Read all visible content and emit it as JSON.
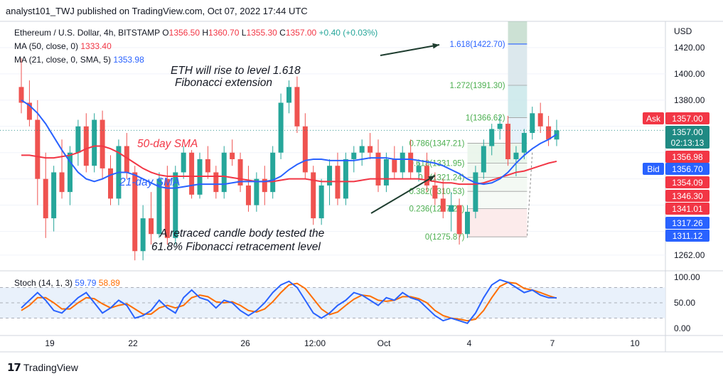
{
  "header": {
    "publisher_line": "analyst101_TWJ published on TradingView.com, Oct 07, 2022 17:44 UTC"
  },
  "footer": {
    "brand": "TradingView"
  },
  "legend": {
    "symbol": "Ethereum / U.S. Dollar, 4h, BITSTAMP",
    "o_label": "O",
    "o": "1356.50",
    "h_label": "H",
    "h": "1360.70",
    "l_label": "L",
    "l": "1355.30",
    "c_label": "C",
    "c": "1357.00",
    "change": "+0.40 (+0.03%)",
    "ma1_label": "MA (50, close, 0)",
    "ma1_value": "1333.40",
    "ma2_label": "MA (21, close, 0, SMA, 5)",
    "ma2_value": "1353.98"
  },
  "annotations": {
    "top_line1": "ETH will rise to level  1.618",
    "top_line2": "Fibonacci extension",
    "sma50": "50-day SMA",
    "sma21": "21-day SMA",
    "bottom_line1": "A retraced candle body tested the",
    "bottom_line2": "61.8% Fibonacci retracement level"
  },
  "price_axis": {
    "currency": "USD",
    "ticks": [
      "1420.00",
      "1400.00",
      "1380.00",
      "1262.00"
    ],
    "badges": [
      {
        "label": "Ask",
        "value": "1357.00",
        "color": "#f23645"
      },
      {
        "value": "1357.00",
        "sub": "02:13:13",
        "color": "#1f8a83"
      },
      {
        "value": "1356.98",
        "color": "#f23645"
      },
      {
        "label": "Bid",
        "value": "1356.70",
        "color": "#2962ff"
      },
      {
        "value": "1354.09",
        "color": "#f23645"
      },
      {
        "value": "1346.30",
        "color": "#f23645"
      },
      {
        "value": "1341.01",
        "color": "#f23645"
      },
      {
        "value": "1317.26",
        "color": "#2962ff"
      },
      {
        "value": "1311.12",
        "color": "#2962ff"
      }
    ]
  },
  "time_axis": {
    "ticks": [
      "19",
      "22",
      "26",
      "12:00",
      "Oct",
      "4",
      "7",
      "10"
    ]
  },
  "stoch": {
    "label": "Stoch (14, 1, 3)",
    "k_value": "59.79",
    "d_value": "58.89",
    "ticks": [
      "100.00",
      "50.00",
      "0.00"
    ],
    "band": [
      20,
      80
    ]
  },
  "colors": {
    "up": "#26a69a",
    "down": "#ef5350",
    "ma50": "#f23645",
    "ma21": "#2962ff",
    "stoch_k": "#2962ff",
    "stoch_d": "#ff6d00",
    "fib_line": "#2962ff"
  },
  "chart_data": [
    {
      "type": "candlestick",
      "title": "Ethereum / U.S. Dollar, 4h, BITSTAMP",
      "ylabel": "USD",
      "ylim": [
        1250,
        1440
      ],
      "x_ticks": [
        "19",
        "22",
        "26",
        "12:00",
        "Oct",
        "4",
        "7",
        "10"
      ],
      "fib_levels": [
        {
          "label": "1.618(1422.70)",
          "ratio": 1.618,
          "price": 1422.7
        },
        {
          "label": "1.272(1391.30)",
          "ratio": 1.272,
          "price": 1391.3
        },
        {
          "label": "1(1366.62)",
          "ratio": 1,
          "price": 1366.62
        },
        {
          "label": "0.786(1347.21)",
          "ratio": 0.786,
          "price": 1347.21
        },
        {
          "label": "0.618(1331.95)",
          "ratio": 0.618,
          "price": 1331.95
        },
        {
          "label": "0.5(1321.24)",
          "ratio": 0.5,
          "price": 1321.24
        },
        {
          "label": "0.382(1310.53)",
          "ratio": 0.382,
          "price": 1310.53
        },
        {
          "label": "0.236(1297.28)",
          "ratio": 0.236,
          "price": 1297.28
        },
        {
          "label": "0(1275.87)",
          "ratio": 0,
          "price": 1275.87
        }
      ],
      "series": [
        {
          "name": "ETHUSD",
          "candles": [
            [
              1390,
              1412,
              1370,
              1378
            ],
            [
              1378,
              1395,
              1360,
              1365
            ],
            [
              1365,
              1380,
              1300,
              1320
            ],
            [
              1320,
              1340,
              1275,
              1290
            ],
            [
              1290,
              1330,
              1280,
              1325
            ],
            [
              1325,
              1350,
              1305,
              1310
            ],
            [
              1310,
              1345,
              1300,
              1340
            ],
            [
              1340,
              1365,
              1330,
              1360
            ],
            [
              1360,
              1370,
              1325,
              1330
            ],
            [
              1330,
              1370,
              1325,
              1365
            ],
            [
              1365,
              1372,
              1320,
              1328
            ],
            [
              1328,
              1338,
              1300,
              1305
            ],
            [
              1305,
              1350,
              1300,
              1345
            ],
            [
              1345,
              1355,
              1320,
              1325
            ],
            [
              1325,
              1330,
              1258,
              1265
            ],
            [
              1265,
              1300,
              1258,
              1290
            ],
            [
              1290,
              1310,
              1270,
              1278
            ],
            [
              1278,
              1325,
              1275,
              1320
            ],
            [
              1320,
              1330,
              1270,
              1275
            ],
            [
              1275,
              1330,
              1270,
              1325
            ],
            [
              1325,
              1345,
              1320,
              1340
            ],
            [
              1340,
              1342,
              1305,
              1308
            ],
            [
              1308,
              1340,
              1305,
              1335
            ],
            [
              1335,
              1345,
              1320,
              1325
            ],
            [
              1325,
              1330,
              1305,
              1310
            ],
            [
              1310,
              1345,
              1305,
              1340
            ],
            [
              1340,
              1350,
              1330,
              1335
            ],
            [
              1335,
              1340,
              1310,
              1315
            ],
            [
              1315,
              1330,
              1295,
              1300
            ],
            [
              1300,
              1325,
              1295,
              1320
            ],
            [
              1320,
              1330,
              1300,
              1310
            ],
            [
              1310,
              1345,
              1305,
              1340
            ],
            [
              1340,
              1385,
              1335,
              1378
            ],
            [
              1378,
              1395,
              1370,
              1390
            ],
            [
              1390,
              1398,
              1355,
              1360
            ],
            [
              1360,
              1370,
              1320,
              1325
            ],
            [
              1325,
              1330,
              1285,
              1290
            ],
            [
              1290,
              1320,
              1285,
              1315
            ],
            [
              1315,
              1335,
              1300,
              1330
            ],
            [
              1330,
              1340,
              1300,
              1305
            ],
            [
              1305,
              1340,
              1300,
              1335
            ],
            [
              1335,
              1345,
              1325,
              1340
            ],
            [
              1340,
              1350,
              1330,
              1345
            ],
            [
              1345,
              1355,
              1335,
              1340
            ],
            [
              1340,
              1350,
              1310,
              1315
            ],
            [
              1315,
              1340,
              1310,
              1335
            ],
            [
              1335,
              1345,
              1320,
              1325
            ],
            [
              1325,
              1345,
              1320,
              1340
            ],
            [
              1340,
              1350,
              1320,
              1325
            ],
            [
              1325,
              1335,
              1318,
              1330
            ],
            [
              1330,
              1340,
              1310,
              1315
            ],
            [
              1315,
              1325,
              1300,
              1305
            ],
            [
              1305,
              1320,
              1290,
              1295
            ],
            [
              1295,
              1310,
              1280,
              1300
            ],
            [
              1300,
              1305,
              1270,
              1278
            ],
            [
              1278,
              1300,
              1275,
              1295
            ],
            [
              1295,
              1330,
              1290,
              1325
            ],
            [
              1325,
              1350,
              1320,
              1345
            ],
            [
              1345,
              1362,
              1338,
              1358
            ],
            [
              1358,
              1368,
              1350,
              1362
            ],
            [
              1362,
              1368,
              1330,
              1335
            ],
            [
              1335,
              1345,
              1322,
              1340
            ],
            [
              1340,
              1358,
              1335,
              1355
            ],
            [
              1355,
              1375,
              1350,
              1370
            ],
            [
              1370,
              1378,
              1355,
              1360
            ],
            [
              1360,
              1368,
              1345,
              1350
            ],
            [
              1350,
              1365,
              1345,
              1357
            ]
          ]
        },
        {
          "name": "MA (50, close, 0)",
          "values": [
            1338,
            1338,
            1337,
            1336,
            1336,
            1337,
            1338,
            1340,
            1343,
            1345,
            1345,
            1343,
            1340,
            1336,
            1332,
            1328,
            1325,
            1323,
            1322,
            1322,
            1322,
            1322,
            1322,
            1322,
            1322,
            1322,
            1321,
            1320,
            1319,
            1318,
            1318,
            1318,
            1319,
            1320,
            1320,
            1320,
            1319,
            1318,
            1318,
            1318,
            1318,
            1318,
            1319,
            1320,
            1320,
            1320,
            1320,
            1320,
            1320,
            1320,
            1319,
            1318,
            1317,
            1317,
            1316,
            1316,
            1316,
            1317,
            1319,
            1321,
            1323,
            1325,
            1326,
            1328,
            1330,
            1332,
            1333.4
          ]
        },
        {
          "name": "MA (21, close, 0, SMA, 5)",
          "values": [
            1380,
            1376,
            1370,
            1362,
            1352,
            1342,
            1333,
            1325,
            1320,
            1318,
            1320,
            1323,
            1325,
            1325,
            1323,
            1320,
            1317,
            1314,
            1313,
            1313,
            1314,
            1315,
            1316,
            1316,
            1316,
            1316,
            1317,
            1318,
            1318,
            1318,
            1318,
            1319,
            1322,
            1327,
            1331,
            1334,
            1335,
            1335,
            1334,
            1334,
            1334,
            1334,
            1335,
            1336,
            1336,
            1336,
            1335,
            1335,
            1335,
            1334,
            1333,
            1332,
            1330,
            1327,
            1324,
            1320,
            1317,
            1316,
            1317,
            1320,
            1325,
            1332,
            1338,
            1343,
            1347,
            1350,
            1353.98
          ]
        }
      ]
    },
    {
      "type": "line",
      "title": "Stoch (14, 1, 3)",
      "ylim": [
        0,
        100
      ],
      "series": [
        {
          "name": "%K",
          "values": [
            40,
            55,
            70,
            55,
            35,
            30,
            45,
            60,
            70,
            50,
            30,
            40,
            55,
            45,
            20,
            25,
            35,
            55,
            40,
            30,
            60,
            75,
            60,
            55,
            40,
            55,
            50,
            35,
            25,
            35,
            50,
            70,
            85,
            92,
            80,
            55,
            30,
            20,
            30,
            45,
            55,
            70,
            65,
            55,
            45,
            60,
            55,
            70,
            60,
            55,
            40,
            25,
            15,
            20,
            15,
            10,
            30,
            60,
            85,
            95,
            90,
            80,
            70,
            75,
            65,
            60,
            59.79
          ]
        },
        {
          "name": "%D",
          "values": [
            35,
            45,
            60,
            60,
            50,
            38,
            38,
            50,
            60,
            58,
            48,
            40,
            45,
            48,
            38,
            28,
            28,
            40,
            45,
            40,
            45,
            60,
            65,
            62,
            52,
            50,
            52,
            45,
            35,
            32,
            38,
            52,
            70,
            85,
            88,
            78,
            58,
            38,
            27,
            32,
            45,
            57,
            65,
            63,
            55,
            53,
            55,
            62,
            62,
            58,
            50,
            35,
            25,
            20,
            18,
            15,
            18,
            35,
            60,
            82,
            90,
            88,
            78,
            75,
            70,
            64,
            58.89
          ]
        }
      ]
    }
  ]
}
